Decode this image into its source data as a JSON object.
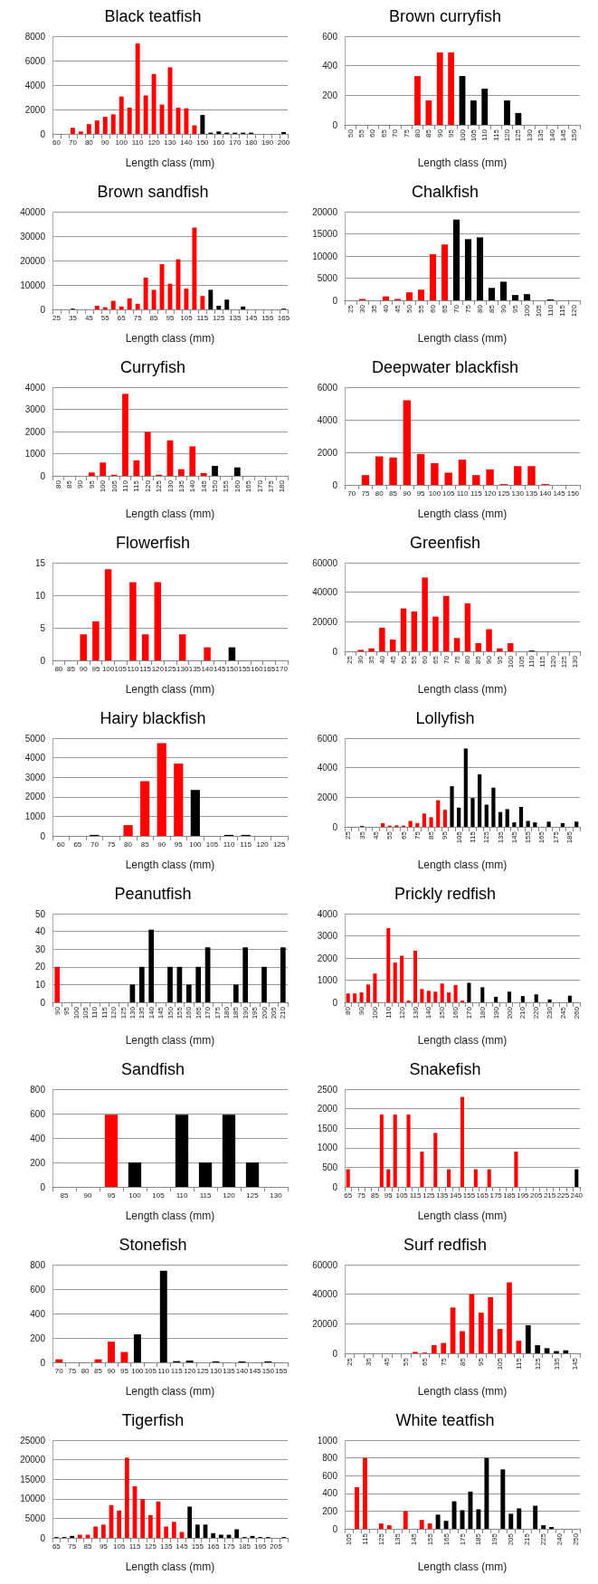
{
  "chart_data": [
    {
      "type": "bar",
      "title": "Black teatfish",
      "xlabel": "Length class (mm)",
      "categories": [
        "60",
        null,
        "70",
        null,
        "80",
        null,
        "90",
        null,
        "100",
        null,
        "110",
        null,
        "120",
        null,
        "130",
        null,
        "140",
        null,
        "150",
        null,
        "160",
        null,
        "170",
        null,
        "180",
        null,
        "190",
        null,
        "200"
      ],
      "values": [
        0,
        0,
        500,
        200,
        800,
        1100,
        1400,
        1600,
        3050,
        2150,
        7400,
        3150,
        4900,
        2400,
        5450,
        2150,
        2100,
        700,
        1550,
        100,
        200,
        100,
        100,
        100,
        100,
        0,
        0,
        0,
        150
      ],
      "colors": [
        "#ff0000",
        "#ff0000",
        "#ff0000",
        "#ff0000",
        "#ff0000",
        "#ff0000",
        "#ff0000",
        "#ff0000",
        "#ff0000",
        "#ff0000",
        "#ff0000",
        "#ff0000",
        "#ff0000",
        "#ff0000",
        "#ff0000",
        "#ff0000",
        "#ff0000",
        "#ff0000",
        "#000000",
        "#000000",
        "#000000",
        "#000000",
        "#000000",
        "#000000",
        "#000000",
        "#000000",
        "#000000",
        "#000000",
        "#000000"
      ],
      "ylim": [
        0,
        8000
      ],
      "yticks": [
        0,
        2000,
        4000,
        6000,
        8000
      ],
      "grid": "y"
    },
    {
      "type": "bar",
      "title": "Brown curryfish",
      "xlabel": "Length class (mm)",
      "categories": [
        "50",
        "55",
        "60",
        "65",
        "70",
        "75",
        "80",
        "85",
        "90",
        "95",
        "100",
        "105",
        "110",
        "115",
        "120",
        "125",
        "130",
        "135",
        "140",
        "145",
        "150"
      ],
      "values": [
        0,
        0,
        0,
        0,
        0,
        0,
        330,
        165,
        490,
        490,
        330,
        165,
        245,
        0,
        165,
        80,
        0,
        0,
        0,
        0,
        0
      ],
      "colors": [
        "#ff0000",
        "#ff0000",
        "#ff0000",
        "#ff0000",
        "#ff0000",
        "#ff0000",
        "#ff0000",
        "#ff0000",
        "#ff0000",
        "#ff0000",
        "#000000",
        "#000000",
        "#000000",
        "#000000",
        "#000000",
        "#000000",
        "#000000",
        "#000000",
        "#000000",
        "#000000",
        "#000000"
      ],
      "ylim": [
        0,
        600
      ],
      "yticks": [
        0,
        200,
        400,
        600
      ],
      "grid": "y"
    },
    {
      "type": "bar",
      "title": "Brown sandfish",
      "xlabel": "Length class (mm)",
      "categories": [
        "25",
        null,
        "35",
        null,
        "45",
        null,
        "55",
        null,
        "65",
        null,
        "75",
        null,
        "85",
        null,
        "95",
        null,
        "105",
        null,
        "115",
        null,
        "125",
        null,
        "135",
        null,
        "145",
        null,
        "155",
        null,
        "165"
      ],
      "values": [
        0,
        0,
        300,
        0,
        0,
        1500,
        900,
        3500,
        1200,
        4500,
        2300,
        13000,
        8000,
        18500,
        10500,
        20500,
        8500,
        33500,
        5500,
        8000,
        1500,
        4000,
        0,
        1200,
        0,
        0,
        0,
        0,
        300
      ],
      "colors": [
        "#000000",
        "#000000",
        "#000000",
        "#000000",
        "#000000",
        "#ff0000",
        "#ff0000",
        "#ff0000",
        "#ff0000",
        "#ff0000",
        "#ff0000",
        "#ff0000",
        "#ff0000",
        "#ff0000",
        "#ff0000",
        "#ff0000",
        "#ff0000",
        "#ff0000",
        "#ff0000",
        "#000000",
        "#000000",
        "#000000",
        "#000000",
        "#000000",
        "#000000",
        "#000000",
        "#000000",
        "#000000",
        "#000000"
      ],
      "ylim": [
        0,
        40000
      ],
      "yticks": [
        0,
        10000,
        20000,
        30000,
        40000
      ],
      "grid": "y"
    },
    {
      "type": "bar",
      "title": "Chalkfish",
      "xlabel": "Length class (mm)",
      "categories": [
        "25",
        "30",
        "35",
        "40",
        "45",
        "50",
        "55",
        "60",
        "65",
        "70",
        "75",
        "80",
        "85",
        "90",
        "95",
        "100",
        "105",
        "110",
        "115",
        "120"
      ],
      "values": [
        0,
        300,
        0,
        900,
        300,
        1800,
        2400,
        10400,
        12600,
        18200,
        13800,
        14200,
        2800,
        4200,
        1200,
        1400,
        0,
        200,
        0,
        0
      ],
      "colors": [
        "#ff0000",
        "#ff0000",
        "#ff0000",
        "#ff0000",
        "#ff0000",
        "#ff0000",
        "#ff0000",
        "#ff0000",
        "#ff0000",
        "#000000",
        "#000000",
        "#000000",
        "#000000",
        "#000000",
        "#000000",
        "#000000",
        "#000000",
        "#000000",
        "#000000",
        "#000000"
      ],
      "ylim": [
        0,
        20000
      ],
      "yticks": [
        0,
        5000,
        10000,
        15000,
        20000
      ],
      "grid": "y"
    },
    {
      "type": "bar",
      "title": "Curryfish",
      "xlabel": "Length class (mm)",
      "categories": [
        "80",
        "85",
        "90",
        "95",
        "100",
        "105",
        "110",
        "115",
        "120",
        "125",
        "130",
        "135",
        "140",
        "145",
        "150",
        "155",
        "160",
        "165",
        "170",
        "175",
        "180"
      ],
      "values": [
        0,
        0,
        0,
        150,
        600,
        50,
        3700,
        700,
        1980,
        50,
        1600,
        300,
        1330,
        130,
        450,
        0,
        380,
        0,
        0,
        0,
        0
      ],
      "colors": [
        "#ff0000",
        "#ff0000",
        "#ff0000",
        "#ff0000",
        "#ff0000",
        "#ff0000",
        "#ff0000",
        "#ff0000",
        "#ff0000",
        "#ff0000",
        "#ff0000",
        "#ff0000",
        "#ff0000",
        "#ff0000",
        "#000000",
        "#000000",
        "#000000",
        "#000000",
        "#000000",
        "#000000",
        "#000000"
      ],
      "ylim": [
        0,
        4000
      ],
      "yticks": [
        0,
        1000,
        2000,
        3000,
        4000
      ],
      "grid": "y"
    },
    {
      "type": "bar",
      "title": "Deepwater blackfish",
      "xlabel": "Length class (mm)",
      "categories": [
        "70",
        "75",
        "80",
        "85",
        "90",
        "95",
        "100",
        "105",
        "110",
        "115",
        "120",
        "125",
        "130",
        "135",
        "140",
        "145",
        "150"
      ],
      "values": [
        0,
        600,
        1750,
        1680,
        5200,
        1900,
        1330,
        750,
        1550,
        600,
        950,
        50,
        1150,
        1150,
        50,
        0,
        0
      ],
      "colors": [
        "#ff0000",
        "#ff0000",
        "#ff0000",
        "#ff0000",
        "#ff0000",
        "#ff0000",
        "#ff0000",
        "#ff0000",
        "#ff0000",
        "#ff0000",
        "#ff0000",
        "#ff0000",
        "#ff0000",
        "#ff0000",
        "#ff0000",
        "#ff0000",
        "#ff0000"
      ],
      "ylim": [
        0,
        6000
      ],
      "yticks": [
        0,
        2000,
        4000,
        6000
      ],
      "grid": "y"
    },
    {
      "type": "bar",
      "title": "Flowerfish",
      "xlabel": "Length class (mm)",
      "categories": [
        "80",
        "85",
        "90",
        "95",
        "100",
        "105",
        "110",
        "115",
        "120",
        "125",
        "130",
        "135",
        "140",
        "145",
        "150",
        "155",
        "160",
        "165",
        "170"
      ],
      "values": [
        0,
        0,
        4,
        6,
        14,
        0,
        12,
        4,
        12,
        0,
        4,
        0,
        2,
        0,
        2,
        0,
        0,
        0,
        0
      ],
      "colors": [
        "#ff0000",
        "#ff0000",
        "#ff0000",
        "#ff0000",
        "#ff0000",
        "#ff0000",
        "#ff0000",
        "#ff0000",
        "#ff0000",
        "#ff0000",
        "#ff0000",
        "#ff0000",
        "#ff0000",
        "#ff0000",
        "#000000",
        "#000000",
        "#000000",
        "#000000",
        "#000000"
      ],
      "ylim": [
        0,
        15
      ],
      "yticks": [
        0,
        5,
        10,
        15
      ],
      "grid": "y"
    },
    {
      "type": "bar",
      "title": "Greenfish",
      "xlabel": "Length class (mm)",
      "categories": [
        "25",
        "30",
        "35",
        "40",
        "45",
        "50",
        "55",
        "60",
        "65",
        "70",
        "75",
        "80",
        "85",
        "90",
        "95",
        "100",
        "105",
        "110",
        "115",
        "120",
        "125",
        "130"
      ],
      "values": [
        0,
        1000,
        2000,
        16000,
        8000,
        29000,
        27000,
        50000,
        23500,
        37500,
        9000,
        32500,
        5500,
        15000,
        2000,
        5500,
        0,
        500,
        0,
        0,
        0,
        0
      ],
      "colors": [
        "#ff0000",
        "#ff0000",
        "#ff0000",
        "#ff0000",
        "#ff0000",
        "#ff0000",
        "#ff0000",
        "#ff0000",
        "#ff0000",
        "#ff0000",
        "#ff0000",
        "#ff0000",
        "#ff0000",
        "#ff0000",
        "#ff0000",
        "#ff0000",
        "#ff0000",
        "#000000",
        "#000000",
        "#000000",
        "#000000",
        "#000000"
      ],
      "ylim": [
        0,
        60000
      ],
      "yticks": [
        0,
        20000,
        40000,
        60000
      ],
      "grid": "y"
    },
    {
      "type": "bar",
      "title": "Hairy blackfish",
      "xlabel": "Length class (mm)",
      "categories": [
        "60",
        "65",
        "70",
        "75",
        "80",
        "85",
        "90",
        "95",
        "100",
        "105",
        "110",
        "115",
        "120",
        "125"
      ],
      "values": [
        0,
        0,
        50,
        0,
        550,
        2800,
        4750,
        3700,
        2350,
        0,
        50,
        50,
        0,
        0
      ],
      "colors": [
        "#000000",
        "#000000",
        "#000000",
        "#000000",
        "#ff0000",
        "#ff0000",
        "#ff0000",
        "#ff0000",
        "#000000",
        "#000000",
        "#000000",
        "#000000",
        "#000000",
        "#000000"
      ],
      "ylim": [
        0,
        5000
      ],
      "yticks": [
        0,
        1000,
        2000,
        3000,
        4000,
        5000
      ],
      "grid": "y"
    },
    {
      "type": "bar",
      "title": "Lollyfish",
      "xlabel": "Length class (mm)",
      "categories": [
        "25",
        null,
        "35",
        null,
        "45",
        null,
        "55",
        null,
        "65",
        null,
        "75",
        null,
        "85",
        null,
        "95",
        null,
        "105",
        null,
        "115",
        null,
        "125",
        null,
        "135",
        null,
        "145",
        null,
        "155",
        null,
        "165",
        null,
        "175",
        null,
        "185",
        null
      ],
      "values": [
        0,
        0,
        50,
        0,
        0,
        250,
        80,
        100,
        80,
        400,
        250,
        900,
        650,
        1800,
        1150,
        2750,
        1300,
        5300,
        1950,
        3550,
        1500,
        2650,
        1000,
        1200,
        300,
        1350,
        400,
        300,
        0,
        350,
        0,
        250,
        0,
        350
      ],
      "colors": [
        "#000000",
        "#000000",
        "#000000",
        "#000000",
        "#000000",
        "#ff0000",
        "#ff0000",
        "#ff0000",
        "#ff0000",
        "#ff0000",
        "#ff0000",
        "#ff0000",
        "#ff0000",
        "#ff0000",
        "#ff0000",
        "#000000",
        "#000000",
        "#000000",
        "#000000",
        "#000000",
        "#000000",
        "#000000",
        "#000000",
        "#000000",
        "#000000",
        "#000000",
        "#000000",
        "#000000",
        "#000000",
        "#000000",
        "#000000",
        "#000000",
        "#000000",
        "#000000"
      ],
      "ylim": [
        0,
        6000
      ],
      "yticks": [
        0,
        2000,
        4000,
        6000
      ],
      "grid": "y"
    },
    {
      "type": "bar",
      "title": "Peanutfish",
      "xlabel": "Length class (mm)",
      "categories": [
        "90",
        "95",
        "100",
        "105",
        "110",
        "115",
        "120",
        "125",
        "130",
        "135",
        "140",
        "145",
        "150",
        "155",
        "160",
        "165",
        "170",
        "175",
        "180",
        "185",
        "190",
        "195",
        "200",
        "205",
        "210"
      ],
      "values": [
        20,
        0,
        0,
        0,
        0,
        0,
        0,
        0,
        10,
        20,
        41,
        0,
        20,
        20,
        10,
        20,
        31,
        0,
        0,
        10,
        31,
        0,
        20,
        0,
        31
      ],
      "colors": [
        "#ff0000",
        "#000000",
        "#000000",
        "#000000",
        "#000000",
        "#000000",
        "#000000",
        "#000000",
        "#000000",
        "#000000",
        "#000000",
        "#000000",
        "#000000",
        "#000000",
        "#000000",
        "#000000",
        "#000000",
        "#000000",
        "#000000",
        "#000000",
        "#000000",
        "#000000",
        "#000000",
        "#000000",
        "#000000"
      ],
      "ylim": [
        0,
        50
      ],
      "yticks": [
        0,
        10,
        20,
        30,
        40,
        50
      ],
      "grid": "y"
    },
    {
      "type": "bar",
      "title": "Prickly redfish",
      "xlabel": "Length class (mm)",
      "categories": [
        "80",
        null,
        "90",
        null,
        "100",
        null,
        "110",
        null,
        "120",
        null,
        "130",
        null,
        "140",
        null,
        "150",
        null,
        "160",
        null,
        "170",
        null,
        "180",
        null,
        "190",
        null,
        "200",
        null,
        "210",
        null,
        "220",
        null,
        "230",
        null,
        "245",
        null,
        "260"
      ],
      "values": [
        400,
        400,
        450,
        800,
        1300,
        0,
        3350,
        1800,
        2100,
        80,
        2330,
        600,
        520,
        480,
        850,
        450,
        780,
        80,
        880,
        0,
        680,
        0,
        250,
        0,
        480,
        0,
        280,
        0,
        360,
        0,
        130,
        0,
        0,
        300,
        0
      ],
      "colors": [
        "#ff0000",
        "#ff0000",
        "#ff0000",
        "#ff0000",
        "#ff0000",
        "#ff0000",
        "#ff0000",
        "#ff0000",
        "#ff0000",
        "#ff0000",
        "#ff0000",
        "#ff0000",
        "#ff0000",
        "#ff0000",
        "#ff0000",
        "#ff0000",
        "#ff0000",
        "#ff0000",
        "#000000",
        "#000000",
        "#000000",
        "#000000",
        "#000000",
        "#000000",
        "#000000",
        "#000000",
        "#000000",
        "#000000",
        "#000000",
        "#000000",
        "#000000",
        "#000000",
        "#000000",
        "#000000",
        "#000000"
      ],
      "ylim": [
        0,
        4000
      ],
      "yticks": [
        0,
        1000,
        2000,
        3000,
        4000
      ],
      "grid": "y"
    },
    {
      "type": "bar",
      "title": "Sandfish",
      "xlabel": "Length class (mm)",
      "categories": [
        "85",
        "90",
        "95",
        "100",
        "105",
        "110",
        "115",
        "120",
        "125",
        "130"
      ],
      "values": [
        0,
        0,
        590,
        200,
        0,
        590,
        200,
        590,
        200,
        0
      ],
      "colors": [
        "#ff0000",
        "#ff0000",
        "#ff0000",
        "#000000",
        "#000000",
        "#000000",
        "#000000",
        "#000000",
        "#000000",
        "#000000"
      ],
      "ylim": [
        0,
        800
      ],
      "yticks": [
        0,
        200,
        400,
        600,
        800
      ],
      "grid": "y"
    },
    {
      "type": "bar",
      "title": "Snakefish",
      "xlabel": "Length class (mm)",
      "categories": [
        "65",
        null,
        "75",
        null,
        "85",
        null,
        "95",
        null,
        "105",
        null,
        "115",
        null,
        "125",
        null,
        "135",
        null,
        "145",
        null,
        "155",
        null,
        "165",
        null,
        "175",
        null,
        "185",
        null,
        "195",
        null,
        "205",
        null,
        "215",
        null,
        "225",
        null,
        "240"
      ],
      "values": [
        450,
        0,
        0,
        0,
        0,
        1850,
        450,
        1850,
        0,
        1850,
        0,
        900,
        0,
        1380,
        0,
        450,
        0,
        2300,
        0,
        450,
        0,
        450,
        0,
        0,
        0,
        900,
        0,
        0,
        0,
        0,
        0,
        0,
        0,
        0,
        450
      ],
      "colors": [
        "#ff0000",
        "#ff0000",
        "#ff0000",
        "#ff0000",
        "#ff0000",
        "#ff0000",
        "#ff0000",
        "#ff0000",
        "#ff0000",
        "#ff0000",
        "#ff0000",
        "#ff0000",
        "#ff0000",
        "#ff0000",
        "#ff0000",
        "#ff0000",
        "#ff0000",
        "#ff0000",
        "#ff0000",
        "#ff0000",
        "#ff0000",
        "#ff0000",
        "#ff0000",
        "#ff0000",
        "#ff0000",
        "#ff0000",
        "#ff0000",
        "#ff0000",
        "#ff0000",
        "#ff0000",
        "#ff0000",
        "#ff0000",
        "#ff0000",
        "#ff0000",
        "#000000"
      ],
      "ylim": [
        0,
        2500
      ],
      "yticks": [
        0,
        500,
        1000,
        1500,
        2000,
        2500
      ],
      "grid": "y"
    },
    {
      "type": "bar",
      "title": "Stonefish",
      "xlabel": "Length class (mm)",
      "categories": [
        "70",
        "75",
        "80",
        "85",
        "90",
        "95",
        "100",
        "105",
        "110",
        "115",
        "120",
        "125",
        "130",
        "135",
        "140",
        "145",
        "150",
        "155"
      ],
      "values": [
        25,
        0,
        0,
        25,
        170,
        85,
        230,
        0,
        750,
        10,
        15,
        0,
        8,
        0,
        8,
        0,
        8,
        0
      ],
      "colors": [
        "#ff0000",
        "#ff0000",
        "#ff0000",
        "#ff0000",
        "#ff0000",
        "#ff0000",
        "#000000",
        "#000000",
        "#000000",
        "#000000",
        "#000000",
        "#000000",
        "#000000",
        "#000000",
        "#000000",
        "#000000",
        "#000000",
        "#000000"
      ],
      "ylim": [
        0,
        800
      ],
      "yticks": [
        0,
        200,
        400,
        600,
        800
      ],
      "grid": "y"
    },
    {
      "type": "bar",
      "title": "Surf redfish",
      "xlabel": "Length class (mm)",
      "categories": [
        "25",
        null,
        "35",
        null,
        "45",
        null,
        "55",
        null,
        "65",
        null,
        "75",
        null,
        "85",
        null,
        "95",
        null,
        "105",
        null,
        "115",
        null,
        "125",
        null,
        "135",
        null,
        "145"
      ],
      "values": [
        0,
        0,
        0,
        0,
        0,
        0,
        0,
        1000,
        500,
        5500,
        7000,
        31000,
        15000,
        40000,
        27500,
        38000,
        16500,
        48000,
        8500,
        19000,
        5500,
        3500,
        1500,
        2000,
        0
      ],
      "colors": [
        "#ff0000",
        "#ff0000",
        "#ff0000",
        "#ff0000",
        "#ff0000",
        "#ff0000",
        "#ff0000",
        "#ff0000",
        "#ff0000",
        "#ff0000",
        "#ff0000",
        "#ff0000",
        "#ff0000",
        "#ff0000",
        "#ff0000",
        "#ff0000",
        "#ff0000",
        "#ff0000",
        "#ff0000",
        "#000000",
        "#000000",
        "#000000",
        "#000000",
        "#000000",
        "#000000"
      ],
      "ylim": [
        0,
        60000
      ],
      "yticks": [
        0,
        20000,
        40000,
        60000
      ],
      "grid": "y"
    },
    {
      "type": "bar",
      "title": "Tigerfish",
      "xlabel": "Length class (mm)",
      "categories": [
        "65",
        null,
        "75",
        null,
        "85",
        null,
        "95",
        null,
        "105",
        null,
        "115",
        null,
        "125",
        null,
        "135",
        null,
        "145",
        null,
        "155",
        null,
        "165",
        null,
        "175",
        null,
        "185",
        null,
        "195",
        null,
        "205",
        null
      ],
      "values": [
        200,
        200,
        500,
        800,
        800,
        2900,
        3400,
        8400,
        7000,
        20500,
        13200,
        9900,
        5800,
        9300,
        2900,
        4100,
        1500,
        8000,
        3400,
        3400,
        1200,
        800,
        800,
        2200,
        200,
        500,
        200,
        200,
        0,
        200
      ],
      "colors": [
        "#000000",
        "#000000",
        "#000000",
        "#ff0000",
        "#ff0000",
        "#ff0000",
        "#ff0000",
        "#ff0000",
        "#ff0000",
        "#ff0000",
        "#ff0000",
        "#ff0000",
        "#ff0000",
        "#ff0000",
        "#ff0000",
        "#ff0000",
        "#ff0000",
        "#000000",
        "#000000",
        "#000000",
        "#000000",
        "#000000",
        "#000000",
        "#000000",
        "#000000",
        "#000000",
        "#000000",
        "#000000",
        "#000000",
        "#000000"
      ],
      "ylim": [
        0,
        25000
      ],
      "yticks": [
        0,
        5000,
        10000,
        15000,
        20000,
        25000
      ],
      "grid": "y"
    },
    {
      "type": "bar",
      "title": "White teatfish",
      "xlabel": "Length class (mm)",
      "categories": [
        "105",
        null,
        "115",
        null,
        "125",
        null,
        "135",
        null,
        "145",
        null,
        "155",
        null,
        "165",
        null,
        "175",
        null,
        "185",
        null,
        "195",
        null,
        "205",
        null,
        "215",
        null,
        "225",
        null,
        "240",
        null,
        "250"
      ],
      "values": [
        0,
        470,
        800,
        0,
        60,
        40,
        0,
        200,
        0,
        100,
        60,
        160,
        90,
        310,
        210,
        420,
        220,
        800,
        0,
        670,
        170,
        230,
        0,
        260,
        40,
        20,
        0,
        0,
        0
      ],
      "colors": [
        "#ff0000",
        "#ff0000",
        "#ff0000",
        "#ff0000",
        "#ff0000",
        "#ff0000",
        "#ff0000",
        "#ff0000",
        "#ff0000",
        "#ff0000",
        "#ff0000",
        "#000000",
        "#000000",
        "#000000",
        "#000000",
        "#000000",
        "#000000",
        "#000000",
        "#000000",
        "#000000",
        "#000000",
        "#000000",
        "#000000",
        "#000000",
        "#000000",
        "#000000",
        "#000000",
        "#000000",
        "#000000"
      ],
      "ylim": [
        0,
        1000
      ],
      "yticks": [
        0,
        200,
        400,
        600,
        800,
        1000
      ],
      "grid": "y"
    }
  ]
}
